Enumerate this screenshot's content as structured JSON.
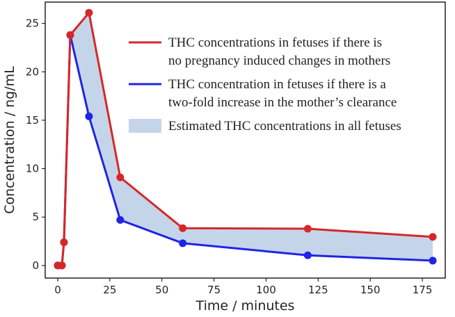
{
  "chart_data": {
    "type": "line",
    "xlabel": "Time / minutes",
    "ylabel": "Concentration / ng/mL",
    "xlim": [
      -6,
      186
    ],
    "ylim": [
      -1.3,
      27.2
    ],
    "x_ticks": [
      0,
      25,
      50,
      75,
      100,
      125,
      150,
      175
    ],
    "y_ticks": [
      0,
      5,
      10,
      15,
      20,
      25
    ],
    "grid": false,
    "legend_position": "top-right",
    "series": [
      {
        "name": "THC concentrations in fetuses if there is no pregnancy induced changes in mothers",
        "legend_lines": [
          "THC concentrations in fetuses if there is",
          "no pregnancy induced changes in mothers"
        ],
        "color": "#d62728",
        "x": [
          0,
          2,
          3,
          6,
          15,
          30,
          60,
          120,
          180
        ],
        "y": [
          0,
          0,
          2.4,
          23.8,
          26.1,
          9.1,
          3.85,
          3.8,
          2.95
        ]
      },
      {
        "name": "THC concentration in fetuses if there is a two-fold increase in the mother’s clearance",
        "legend_lines": [
          "THC concentration in fetuses if there is a",
          "two-fold increase in the mother’s clearance"
        ],
        "color": "#1f24e6",
        "x": [
          0,
          2,
          3,
          6,
          15,
          30,
          60,
          120,
          180
        ],
        "y": [
          0,
          0,
          2.4,
          23.8,
          15.4,
          4.7,
          2.3,
          1.05,
          0.5
        ]
      }
    ],
    "fill": {
      "name": "Estimated THC concentrations in all fetuses",
      "legend_lines": [
        "Estimated THC concentrations in all fetuses"
      ],
      "color": "#c5d5e9"
    }
  }
}
